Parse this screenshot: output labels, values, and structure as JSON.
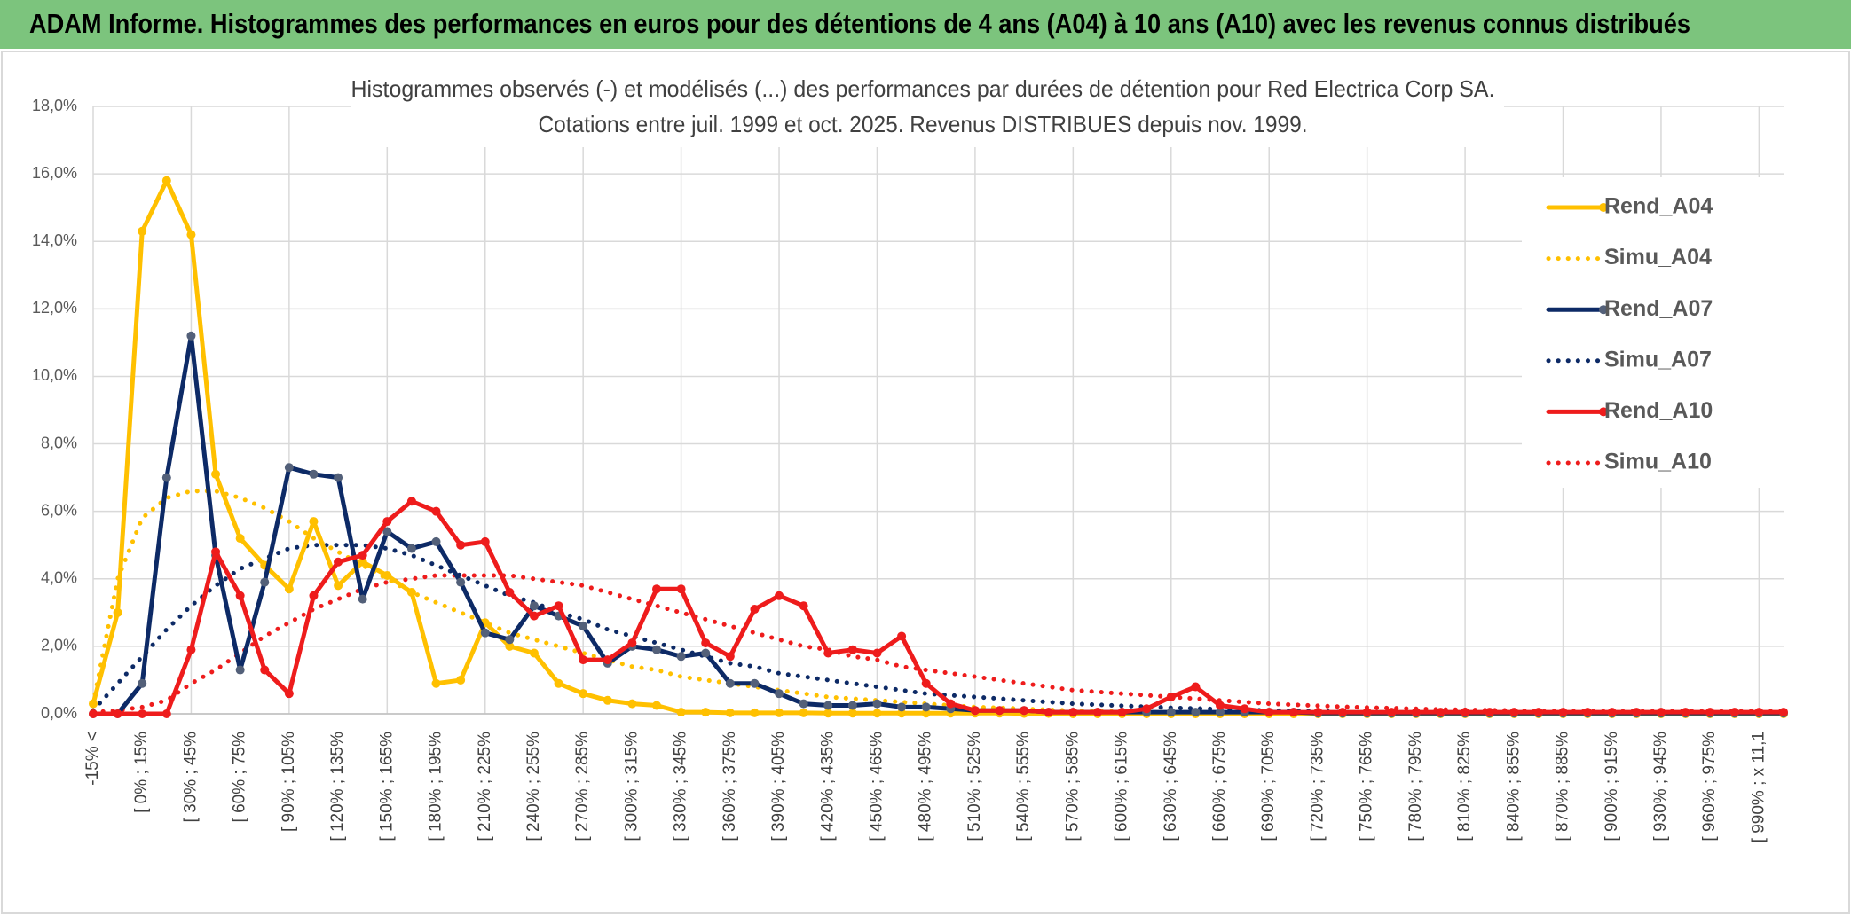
{
  "header": {
    "title": "ADAM Informe. Histogrammes des performances en euros pour des détentions de 4 ans (A04) à 10 ans (A10) avec les revenus connus distribués"
  },
  "chart_data": {
    "type": "line",
    "title": "Histogrammes observés (-) et modélisés (...) des performances par durées de détention pour Red Electrica Corp SA.",
    "subtitle": "Cotations entre juil. 1999 et oct. 2025. Revenus DISTRIBUES depuis nov. 1999.",
    "legend": "right",
    "grid": true,
    "ylim": [
      0,
      18
    ],
    "yticks": [
      {
        "value": 0,
        "label": "0,0%"
      },
      {
        "value": 2,
        "label": "2,0%"
      },
      {
        "value": 4,
        "label": "4,0%"
      },
      {
        "value": 6,
        "label": "6,0%"
      },
      {
        "value": 8,
        "label": "8,0%"
      },
      {
        "value": 10,
        "label": "10,0%"
      },
      {
        "value": 12,
        "label": "12,0%"
      },
      {
        "value": 14,
        "label": "14,0%"
      },
      {
        "value": 16,
        "label": "16,0%"
      },
      {
        "value": 18,
        "label": "18,0%"
      }
    ],
    "categories": [
      "-15% <",
      null,
      "[ 0% ; 15%",
      null,
      "[ 30% ; 45%",
      null,
      "[ 60% ; 75%",
      null,
      "[ 90% ; 105%",
      null,
      "[ 120% ; 135%",
      null,
      "[ 150% ; 165%",
      null,
      "[ 180% ; 195%",
      null,
      "[ 210% ; 225%",
      null,
      "[ 240% ; 255%",
      null,
      "[ 270% ; 285%",
      null,
      "[ 300% ; 315%",
      null,
      "[ 330% ; 345%",
      null,
      "[ 360% ; 375%",
      null,
      "[ 390% ; 405%",
      null,
      "[ 420% ; 435%",
      null,
      "[ 450% ; 465%",
      null,
      "[ 480% ; 495%",
      null,
      "[ 510% ; 525%",
      null,
      "[ 540% ; 555%",
      null,
      "[ 570% ; 585%",
      null,
      "[ 600% ; 615%",
      null,
      "[ 630% ; 645%",
      null,
      "[ 660% ; 675%",
      null,
      "[ 690% ; 705%",
      null,
      "[ 720% ; 735%",
      null,
      "[ 750% ; 765%",
      null,
      "[ 780% ; 795%",
      null,
      "[ 810% ; 825%",
      null,
      "[ 840% ; 855%",
      null,
      "[ 870% ; 885%",
      null,
      "[ 900% ; 915%",
      null,
      "[ 930% ; 945%",
      null,
      "[ 960% ; 975%",
      null,
      "[ 990% ; x 11,1",
      null
    ],
    "series": [
      {
        "name": "Rend_A04",
        "color": "#ffc000",
        "marker": true,
        "dashed": false,
        "values": [
          0.3,
          3.0,
          14.3,
          15.8,
          14.2,
          7.1,
          5.2,
          4.4,
          3.7,
          5.7,
          3.8,
          4.5,
          4.1,
          3.6,
          0.9,
          1.0,
          2.7,
          2.0,
          1.8,
          0.9,
          0.6,
          0.4,
          0.3,
          0.25,
          0.05,
          0.05,
          0.03,
          0.03,
          0.03,
          0.03,
          0.02,
          0.02,
          0.02,
          0.02,
          0.02,
          0.02,
          0.02,
          0.02,
          0.01,
          0.01,
          0,
          0,
          0,
          0,
          0,
          0,
          0,
          0,
          0,
          0,
          0,
          0,
          0,
          0,
          0,
          0,
          0,
          0,
          0,
          0,
          0,
          0,
          0,
          0,
          0,
          0,
          0,
          0,
          0,
          0
        ]
      },
      {
        "name": "Simu_A04",
        "color": "#ffc000",
        "marker": false,
        "dashed": true,
        "values": [
          0.3,
          4.0,
          5.8,
          6.4,
          6.6,
          6.6,
          6.4,
          6.1,
          5.7,
          5.2,
          4.8,
          4.4,
          4.0,
          3.6,
          3.3,
          3.0,
          2.7,
          2.4,
          2.2,
          2.0,
          1.8,
          1.6,
          1.4,
          1.3,
          1.1,
          1.0,
          0.9,
          0.8,
          0.7,
          0.6,
          0.5,
          0.45,
          0.4,
          0.35,
          0.3,
          0.25,
          0.2,
          0.18,
          0.15,
          0.12,
          0.1,
          0.08,
          0.07,
          0.06,
          0.05,
          0.04,
          0.03,
          0.03,
          0.03,
          0.03,
          0.03,
          0.03,
          0.03,
          0.03,
          0.03,
          0.03,
          0.03,
          0.03,
          0.03,
          0.03,
          0.03,
          0.03,
          0.03,
          0.03,
          0.03,
          0.03,
          0.03,
          0.03,
          0.03,
          0.03
        ]
      },
      {
        "name": "Rend_A07",
        "color": "#0d2a66",
        "marker_color": "#536079",
        "marker": true,
        "dashed": false,
        "values": [
          0,
          0,
          0.9,
          7.0,
          11.2,
          4.7,
          1.3,
          3.9,
          7.3,
          7.1,
          7.0,
          3.4,
          5.4,
          4.9,
          5.1,
          3.9,
          2.4,
          2.2,
          3.2,
          2.9,
          2.6,
          1.5,
          2.0,
          1.9,
          1.7,
          1.8,
          0.9,
          0.9,
          0.6,
          0.3,
          0.25,
          0.25,
          0.3,
          0.2,
          0.2,
          0.15,
          0.1,
          0.1,
          0.1,
          0.05,
          0.05,
          0.05,
          0.05,
          0.05,
          0.05,
          0.05,
          0.05,
          0.05,
          0.05,
          0.05,
          0.02,
          0.02,
          0.02,
          0.02,
          0.02,
          0.02,
          0.02,
          0.02,
          0.02,
          0.02,
          0.02,
          0.02,
          0.02,
          0.02,
          0.02,
          0.02,
          0.02,
          0.02,
          0.02,
          0.02
        ]
      },
      {
        "name": "Simu_A07",
        "color": "#0d2a66",
        "marker": false,
        "dashed": true,
        "values": [
          0.1,
          0.9,
          1.7,
          2.5,
          3.2,
          3.8,
          4.3,
          4.6,
          4.9,
          5.0,
          5.0,
          5.0,
          4.9,
          4.7,
          4.4,
          4.1,
          3.8,
          3.5,
          3.3,
          3.0,
          2.8,
          2.5,
          2.3,
          2.1,
          1.9,
          1.7,
          1.5,
          1.4,
          1.2,
          1.1,
          1.0,
          0.9,
          0.8,
          0.7,
          0.6,
          0.55,
          0.5,
          0.45,
          0.4,
          0.35,
          0.3,
          0.27,
          0.24,
          0.21,
          0.18,
          0.16,
          0.14,
          0.12,
          0.1,
          0.09,
          0.08,
          0.05,
          0.05,
          0.05,
          0.05,
          0.05,
          0.05,
          0.05,
          0.05,
          0.05,
          0.05,
          0.05,
          0.05,
          0.05,
          0.05,
          0.05,
          0.05,
          0.05,
          0.05,
          0.05
        ]
      },
      {
        "name": "Rend_A10",
        "color": "#ee1c1c",
        "marker": true,
        "dashed": false,
        "values": [
          0,
          0,
          0,
          0,
          1.9,
          4.8,
          3.5,
          1.3,
          0.6,
          3.5,
          4.5,
          4.7,
          5.7,
          6.3,
          6.0,
          5.0,
          5.1,
          3.6,
          2.9,
          3.2,
          1.6,
          1.6,
          2.1,
          3.7,
          3.7,
          2.1,
          1.7,
          3.1,
          3.5,
          3.2,
          1.8,
          1.9,
          1.8,
          2.3,
          0.9,
          0.3,
          0.1,
          0.1,
          0.1,
          0.05,
          0.05,
          0.05,
          0.05,
          0.15,
          0.5,
          0.8,
          0.25,
          0.15,
          0.05,
          0.05,
          0.05,
          0.05,
          0.05,
          0.05,
          0.05,
          0.05,
          0.05,
          0.05,
          0.05,
          0.05,
          0.05,
          0.05,
          0.05,
          0.05,
          0.05,
          0.05,
          0.05,
          0.05,
          0.05,
          0.05
        ]
      },
      {
        "name": "Simu_A10",
        "color": "#ee1c1c",
        "marker": false,
        "dashed": true,
        "values": [
          0.05,
          0.1,
          0.2,
          0.4,
          0.9,
          1.3,
          1.8,
          2.3,
          2.7,
          3.1,
          3.4,
          3.7,
          3.9,
          4.0,
          4.1,
          4.1,
          4.1,
          4.1,
          4.0,
          3.9,
          3.8,
          3.6,
          3.4,
          3.2,
          3.0,
          2.8,
          2.6,
          2.4,
          2.2,
          2.0,
          1.9,
          1.7,
          1.6,
          1.4,
          1.3,
          1.2,
          1.1,
          1.0,
          0.9,
          0.8,
          0.7,
          0.65,
          0.6,
          0.55,
          0.5,
          0.45,
          0.4,
          0.35,
          0.3,
          0.27,
          0.24,
          0.21,
          0.19,
          0.17,
          0.15,
          0.13,
          0.12,
          0.11,
          0.1,
          0.08,
          0.08,
          0.08,
          0.08,
          0.08,
          0.08,
          0.08,
          0.08,
          0.08,
          0.08,
          0.08
        ]
      }
    ]
  }
}
